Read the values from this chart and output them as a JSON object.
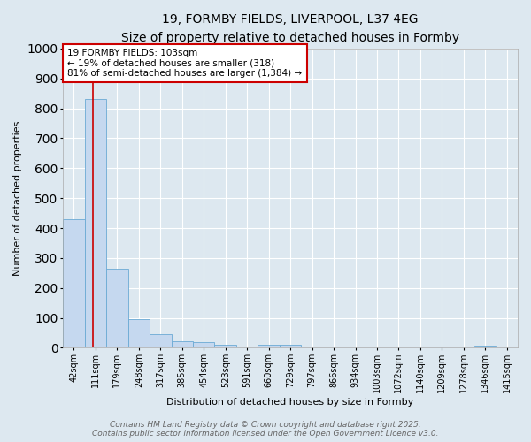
{
  "title": "19, FORMBY FIELDS, LIVERPOOL, L37 4EG",
  "subtitle": "Size of property relative to detached houses in Formby",
  "xlabel": "Distribution of detached houses by size in Formby",
  "ylabel": "Number of detached properties",
  "bar_labels": [
    "42sqm",
    "111sqm",
    "179sqm",
    "248sqm",
    "317sqm",
    "385sqm",
    "454sqm",
    "523sqm",
    "591sqm",
    "660sqm",
    "729sqm",
    "797sqm",
    "866sqm",
    "934sqm",
    "1003sqm",
    "1072sqm",
    "1140sqm",
    "1209sqm",
    "1278sqm",
    "1346sqm",
    "1415sqm"
  ],
  "bar_values": [
    430,
    830,
    265,
    95,
    45,
    22,
    18,
    10,
    0,
    10,
    10,
    0,
    5,
    0,
    0,
    0,
    0,
    0,
    0,
    8,
    0
  ],
  "bar_color": "#c5d8ef",
  "bar_edge_color": "#6baad4",
  "background_color": "#dde8f0",
  "grid_color": "#ffffff",
  "ylim": [
    0,
    1000
  ],
  "annotation_text": "19 FORMBY FIELDS: 103sqm\n← 19% of detached houses are smaller (318)\n81% of semi-detached houses are larger (1,384) →",
  "annotation_box_color": "#ffffff",
  "annotation_box_edge_color": "#cc0000",
  "footer_line1": "Contains HM Land Registry data © Crown copyright and database right 2025.",
  "footer_line2": "Contains public sector information licensed under the Open Government Licence v3.0.",
  "title_fontsize": 10,
  "subtitle_fontsize": 9,
  "tick_fontsize": 7,
  "ylabel_fontsize": 8,
  "xlabel_fontsize": 8,
  "annotation_fontsize": 7.5,
  "footer_fontsize": 6.5
}
